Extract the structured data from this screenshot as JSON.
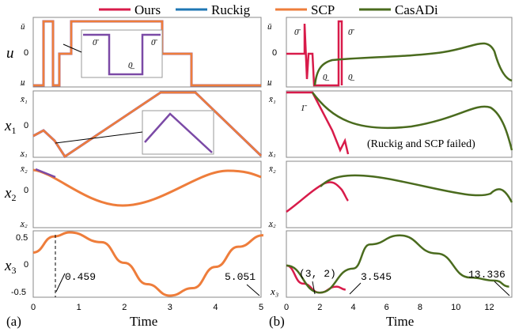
{
  "legend": [
    {
      "name": "Ours",
      "color": "#d81b4a"
    },
    {
      "name": "Ruckig",
      "color": "#1f77b4"
    },
    {
      "name": "SCP",
      "color": "#ee7d3b"
    },
    {
      "name": "CasADi",
      "color": "#4a6b1e"
    }
  ],
  "panels": {
    "a": {
      "label": "(a)",
      "xlabel": "Time"
    },
    "b": {
      "label": "(b)",
      "xlabel": "Time"
    }
  },
  "annotations": {
    "a_x3_left": "0.459",
    "a_x3_right": "5.051",
    "b_x3_point": "(3, 2)",
    "b_x3_mid": "3.545",
    "b_x3_right": "13.336",
    "b_x1_note": "(Ruckig and SCP failed)"
  },
  "chart_data": [
    {
      "type": "line",
      "panel": "a",
      "xlim": [
        0,
        5
      ],
      "x_ticks": [
        "0",
        "1",
        "2",
        "3",
        "4",
        "5"
      ],
      "rows": [
        {
          "ylabel": "u",
          "ticks": [
            "ū",
            "0",
            "u̲"
          ]
        },
        {
          "ylabel": "x1",
          "ticks": [
            "x̄₁",
            "0",
            "x̲₁"
          ]
        },
        {
          "ylabel": "x2",
          "ticks": [
            "x̄₂",
            "0",
            "x̲₂"
          ]
        },
        {
          "ylabel": "x3",
          "ticks": [
            "0.5",
            "0",
            "-0.5"
          ],
          "ylim": [
            -0.55,
            0.55
          ]
        }
      ],
      "series": [
        {
          "name": "Ours",
          "x3": {
            "x": [
              0,
              0.459,
              0.8,
              1.5,
              2,
              2.5,
              3.0,
              3.5,
              4,
              4.5,
              5.051
            ],
            "y": [
              0.2,
              0.48,
              0.55,
              0.38,
              0.02,
              -0.35,
              -0.55,
              -0.42,
              -0.05,
              0.3,
              0.5
            ]
          }
        },
        {
          "name": "SCP",
          "x3": {
            "x": [
              0,
              0.459,
              0.8,
              1.5,
              2,
              2.5,
              3.0,
              3.5,
              4,
              4.5,
              5.051
            ],
            "y": [
              0.2,
              0.48,
              0.55,
              0.38,
              0.02,
              -0.35,
              -0.55,
              -0.42,
              -0.05,
              0.3,
              0.5
            ]
          }
        }
      ]
    },
    {
      "type": "line",
      "panel": "b",
      "xlim": [
        0,
        13.5
      ],
      "x_ticks": [
        "0",
        "2",
        "4",
        "6",
        "8",
        "10",
        "12"
      ],
      "rows": [
        {
          "ylabel": "u",
          "ticks": [
            "ū",
            "0",
            "u̲"
          ]
        },
        {
          "ylabel": "x1",
          "ticks": [
            "x̄₁",
            "x̲₁"
          ]
        },
        {
          "ylabel": "x2",
          "ticks": [
            "x̄₂",
            "x̲₂"
          ]
        },
        {
          "ylabel": "x3",
          "ticks": [
            "x₃"
          ]
        }
      ],
      "series": [
        {
          "name": "Ours",
          "x3": {
            "x": [
              0,
              1,
              2,
              3,
              3.545
            ],
            "y": [
              0.1,
              -0.2,
              -0.35,
              -0.25,
              -0.3
            ]
          }
        },
        {
          "name": "CasADi",
          "x3": {
            "x": [
              0,
              2,
              4,
              5,
              6.8,
              9,
              11,
              12.5,
              13.336
            ],
            "y": [
              0.1,
              -0.35,
              0.05,
              0.45,
              0.6,
              0.3,
              -0.1,
              -0.15,
              -0.25
            ]
          }
        }
      ]
    }
  ]
}
